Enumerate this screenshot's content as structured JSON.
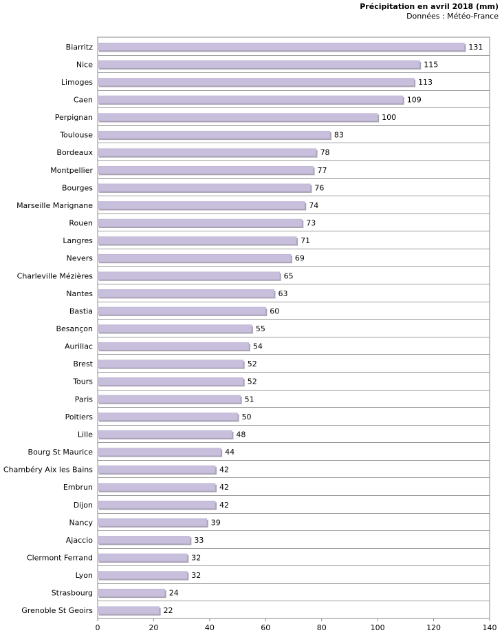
{
  "chart_data": {
    "type": "bar",
    "orientation": "horizontal",
    "title": "Précipitation en avril 2018 (mm)",
    "subtitle": "Données : Météo-France",
    "categories": [
      "Biarritz",
      "Nice",
      "Limoges",
      "Caen",
      "Perpignan",
      "Toulouse",
      "Bordeaux",
      "Montpellier",
      "Bourges",
      "Marseille Marignane",
      "Rouen",
      "Langres",
      "Nevers",
      "Charleville Mézières",
      "Nantes",
      "Bastia",
      "Besançon",
      "Aurillac",
      "Brest",
      "Tours",
      "Paris",
      "Poitiers",
      "Lille",
      "Bourg St Maurice",
      "Chambéry Aix les Bains",
      "Embrun",
      "Dijon",
      "Nancy",
      "Ajaccio",
      "Clermont Ferrand",
      "Lyon",
      "Strasbourg",
      "Grenoble St Geoirs"
    ],
    "values": [
      131,
      115,
      113,
      109,
      100,
      83,
      78,
      77,
      76,
      74,
      73,
      71,
      69,
      65,
      63,
      60,
      55,
      54,
      52,
      52,
      51,
      50,
      48,
      44,
      42,
      42,
      42,
      39,
      33,
      32,
      32,
      24,
      22
    ],
    "xlim": [
      0,
      140
    ],
    "xticks": [
      0,
      20,
      40,
      60,
      80,
      100,
      120,
      140
    ],
    "grid": "horizontal",
    "legend": "none",
    "bar_color": "#c8bfdc",
    "bar_shadow_color": "#a9a3b3"
  }
}
